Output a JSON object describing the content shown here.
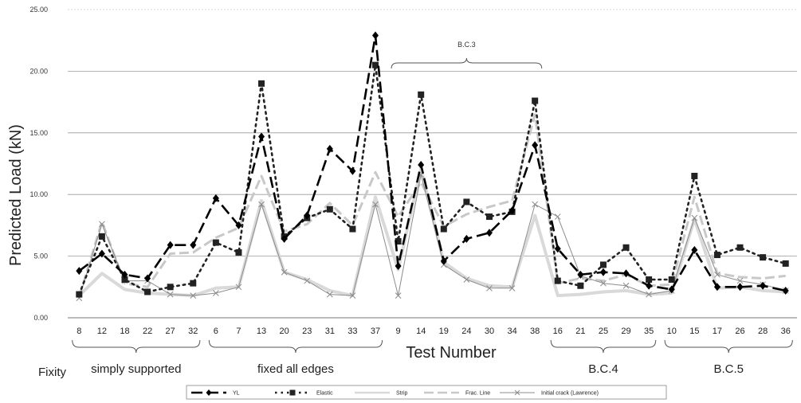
{
  "chart_data": {
    "type": "line",
    "title": "",
    "xlabel": "Test Number",
    "ylabel": "Predicted Load (kN)",
    "ylim": [
      0,
      25
    ],
    "yticks": [
      "0.00",
      "5.00",
      "10.00",
      "15.00",
      "20.00",
      "25.00"
    ],
    "grid": "horizontal",
    "legend_position": "bottom",
    "categories": [
      "8",
      "12",
      "18",
      "22",
      "27",
      "32",
      "6",
      "7",
      "13",
      "20",
      "23",
      "31",
      "33",
      "37",
      "9",
      "14",
      "19",
      "24",
      "30",
      "34",
      "38",
      "16",
      "21",
      "25",
      "29",
      "35",
      "10",
      "15",
      "17",
      "26",
      "28",
      "36"
    ],
    "groups": [
      {
        "label": "simply supported",
        "start": 0,
        "end": 5
      },
      {
        "label": "fixed all edges",
        "start": 6,
        "end": 13
      },
      {
        "label": "B.C.3",
        "start": 14,
        "end": 20
      },
      {
        "label": "B.C.4",
        "start": 21,
        "end": 25
      },
      {
        "label": "B.C.5",
        "start": 26,
        "end": 31
      }
    ],
    "fixity_label": "Fixity",
    "series": [
      {
        "name": "YL",
        "color": "#000000",
        "values": [
          3.8,
          5.2,
          3.5,
          3.2,
          5.9,
          5.9,
          9.7,
          7.5,
          14.7,
          6.4,
          8.3,
          13.7,
          11.9,
          22.9,
          4.2,
          12.4,
          4.6,
          6.4,
          6.9,
          8.7,
          14.0,
          5.6,
          3.5,
          3.7,
          3.6,
          2.6,
          2.3,
          5.5,
          2.5,
          2.5,
          2.6,
          2.2
        ]
      },
      {
        "name": "Elastic",
        "color": "#222222",
        "values": [
          1.9,
          6.6,
          3.1,
          2.1,
          2.5,
          2.8,
          6.1,
          5.3,
          19.0,
          6.6,
          8.1,
          8.8,
          7.2,
          20.5,
          6.2,
          18.1,
          7.2,
          9.4,
          8.2,
          8.6,
          17.6,
          3.0,
          2.6,
          4.3,
          5.7,
          3.1,
          3.1,
          11.5,
          5.1,
          5.7,
          4.9,
          4.4
        ]
      },
      {
        "name": "Strip",
        "color": "#d9d9d9",
        "values": [
          1.8,
          3.6,
          2.3,
          2.0,
          1.9,
          1.8,
          2.4,
          2.5,
          9.5,
          3.7,
          3.1,
          2.2,
          1.8,
          9.8,
          3.9,
          12.1,
          4.5,
          3.2,
          2.6,
          2.5,
          8.3,
          1.8,
          1.9,
          2.1,
          2.2,
          1.9,
          2.0,
          8.0,
          2.4,
          2.5,
          2.2,
          2.1
        ]
      },
      {
        "name": "Frac. Line",
        "color": "#c8c8c8",
        "values": [
          1.7,
          7.8,
          2.8,
          2.5,
          5.2,
          5.3,
          6.5,
          7.3,
          11.5,
          7.0,
          7.6,
          9.3,
          7.5,
          11.8,
          8.2,
          11.0,
          7.4,
          8.4,
          9.0,
          9.5,
          16.5,
          2.8,
          3.2,
          3.0,
          3.5,
          2.6,
          2.7,
          9.8,
          3.6,
          3.3,
          3.2,
          3.4
        ]
      },
      {
        "name": "Initial crack (Lawrence)",
        "color": "#8c8c8c",
        "values": [
          1.6,
          7.6,
          3.0,
          3.0,
          1.9,
          1.8,
          2.0,
          2.5,
          9.2,
          3.7,
          3.0,
          1.9,
          1.8,
          9.2,
          1.8,
          11.6,
          4.3,
          3.1,
          2.4,
          2.4,
          9.2,
          8.2,
          3.4,
          2.8,
          2.6,
          1.9,
          2.2,
          8.1,
          3.5,
          3.0,
          2.7,
          2.2
        ]
      }
    ]
  }
}
